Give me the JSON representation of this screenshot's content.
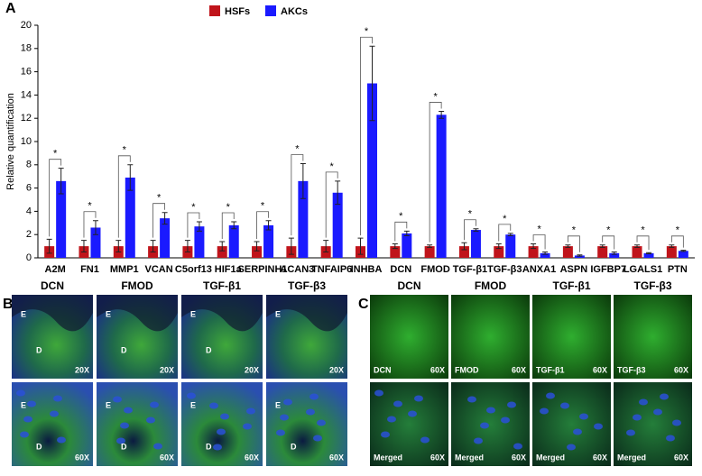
{
  "chart_data": {
    "type": "bar",
    "panel_label": "A",
    "ylabel": "Relative quantification",
    "categories": [
      "A2M",
      "FN1",
      "MMP1",
      "VCAN",
      "C5orf13",
      "HIF1a",
      "SERPINH1",
      "ACAN3",
      "TNFAIP6",
      "INHBA",
      "DCN",
      "FMOD",
      "TGF-β1",
      "TGF-β3",
      "ANXA1",
      "ASPN",
      "IGFBP7",
      "LGALS1",
      "PTN"
    ],
    "series": [
      {
        "name": "HSFs",
        "color": "#c0141b",
        "values": [
          1,
          1,
          1,
          1,
          1,
          1,
          1,
          1,
          1,
          1,
          1,
          1,
          1,
          1,
          1,
          1,
          1,
          1,
          1
        ],
        "errors": [
          0.6,
          0.5,
          0.5,
          0.5,
          0.5,
          0.4,
          0.4,
          0.7,
          0.5,
          0.7,
          0.2,
          0.1,
          0.3,
          0.2,
          0.2,
          0.1,
          0.1,
          0.1,
          0.1
        ]
      },
      {
        "name": "AKCs",
        "color": "#1a1aff",
        "values": [
          6.6,
          2.6,
          6.9,
          3.4,
          2.7,
          2.8,
          2.8,
          6.6,
          5.6,
          15.0,
          2.1,
          12.3,
          2.4,
          2.0,
          0.4,
          0.2,
          0.4,
          0.4,
          0.6
        ],
        "errors": [
          1.1,
          0.6,
          1.1,
          0.5,
          0.4,
          0.3,
          0.4,
          1.5,
          1.0,
          3.2,
          0.2,
          0.3,
          0.1,
          0.1,
          0.1,
          0.05,
          0.1,
          0.05,
          0.05
        ]
      }
    ],
    "significance": [
      "*",
      "*",
      "*",
      "*",
      "*",
      "*",
      "*",
      "*",
      "*",
      "*",
      "*",
      "*",
      "*",
      "*",
      "*",
      "*",
      "*",
      "*",
      "*"
    ],
    "ylim": [
      0,
      20
    ],
    "yticks": [
      0,
      2,
      4,
      6,
      8,
      10,
      12,
      14,
      16,
      18,
      20
    ],
    "grid": false,
    "legend": "top"
  },
  "panel_b": {
    "label": "B",
    "headers": [
      "DCN",
      "FMOD",
      "TGF-β1",
      "TGF-β3"
    ],
    "rows": [
      [
        {
          "marks": [
            "E",
            "D"
          ],
          "scale": "20X"
        },
        {
          "marks": [
            "E",
            "D"
          ],
          "scale": "20X"
        },
        {
          "marks": [
            "E",
            "D"
          ],
          "scale": "20X"
        },
        {
          "marks": [
            "E"
          ],
          "scale": "20X"
        }
      ],
      [
        {
          "marks": [
            "E",
            "D"
          ],
          "scale": "60X"
        },
        {
          "marks": [
            "E",
            "D"
          ],
          "scale": "60X"
        },
        {
          "marks": [
            "E",
            "D"
          ],
          "scale": "60X"
        },
        {
          "marks": [
            "E",
            "D"
          ],
          "scale": "60X"
        }
      ]
    ]
  },
  "panel_c": {
    "label": "C",
    "headers": [
      "DCN",
      "FMOD",
      "TGF-β1",
      "TGF-β3"
    ],
    "rows": [
      [
        {
          "stain": "DCN",
          "scale": "60X"
        },
        {
          "stain": "FMOD",
          "scale": "60X"
        },
        {
          "stain": "TGF-β1",
          "scale": "60X"
        },
        {
          "stain": "TGF-β3",
          "scale": "60X"
        }
      ],
      [
        {
          "stain": "Merged",
          "scale": "60X"
        },
        {
          "stain": "Merged",
          "scale": "60X"
        },
        {
          "stain": "Merged",
          "scale": "60X"
        },
        {
          "stain": "Merged",
          "scale": "60X"
        }
      ]
    ]
  }
}
